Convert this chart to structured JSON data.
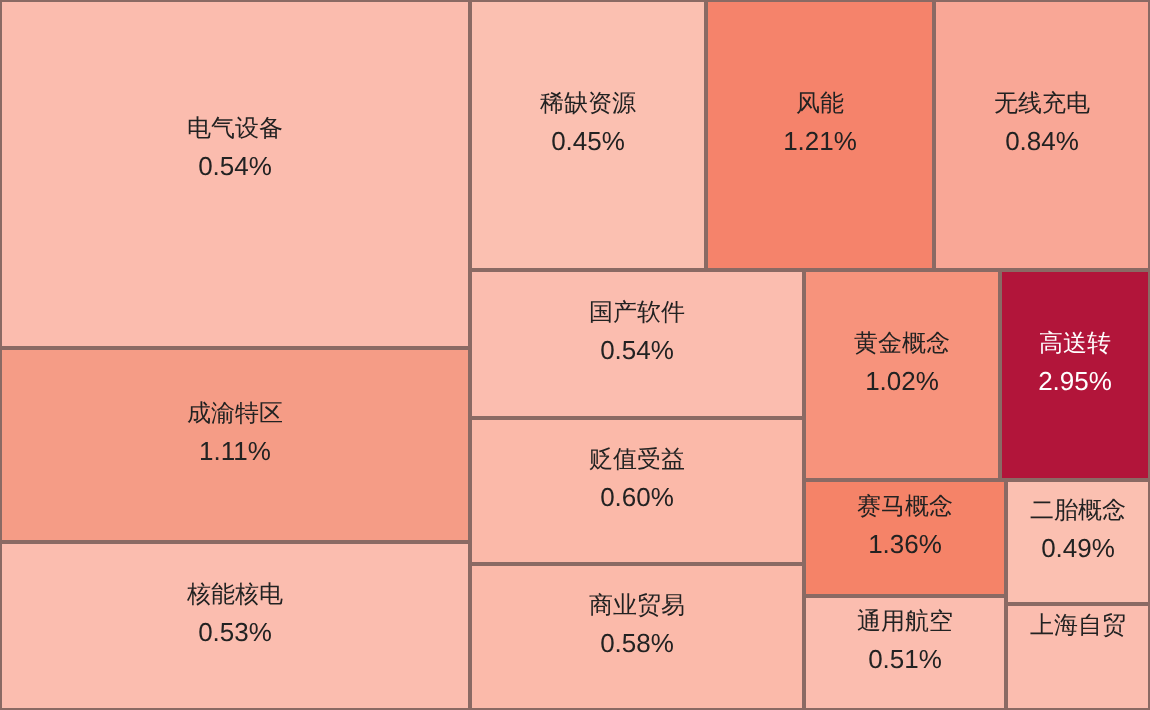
{
  "chart_data": {
    "type": "other",
    "categories": [
      "电气设备",
      "成渝特区",
      "核能核电",
      "稀缺资源",
      "风能",
      "无线充电",
      "国产软件",
      "贬值受益",
      "商业贸易",
      "黄金概念",
      "高送转",
      "赛马概念",
      "二胎概念",
      "通用航空",
      "上海自贸"
    ],
    "values": [
      0.54,
      1.11,
      0.53,
      0.45,
      1.21,
      0.84,
      0.54,
      0.6,
      0.58,
      1.02,
      2.95,
      1.36,
      0.49,
      0.51,
      null
    ],
    "value_labels": [
      "0.54%",
      "1.11%",
      "0.53%",
      "0.45%",
      "1.21%",
      "0.84%",
      "0.54%",
      "0.60%",
      "0.58%",
      "1.02%",
      "2.95%",
      "1.36%",
      "0.49%",
      "0.51%",
      null
    ],
    "colors": [
      "#fbbcae",
      "#f59c86",
      "#fbbdaf",
      "#fbc0b1",
      "#f5836b",
      "#f9a796",
      "#fbbdaf",
      "#fbb9a9",
      "#fbbaaa",
      "#f7937c",
      "#b2153a",
      "#f58368",
      "#fbc0b1",
      "#fbbdaf",
      "#fbbdaf"
    ]
  }
}
